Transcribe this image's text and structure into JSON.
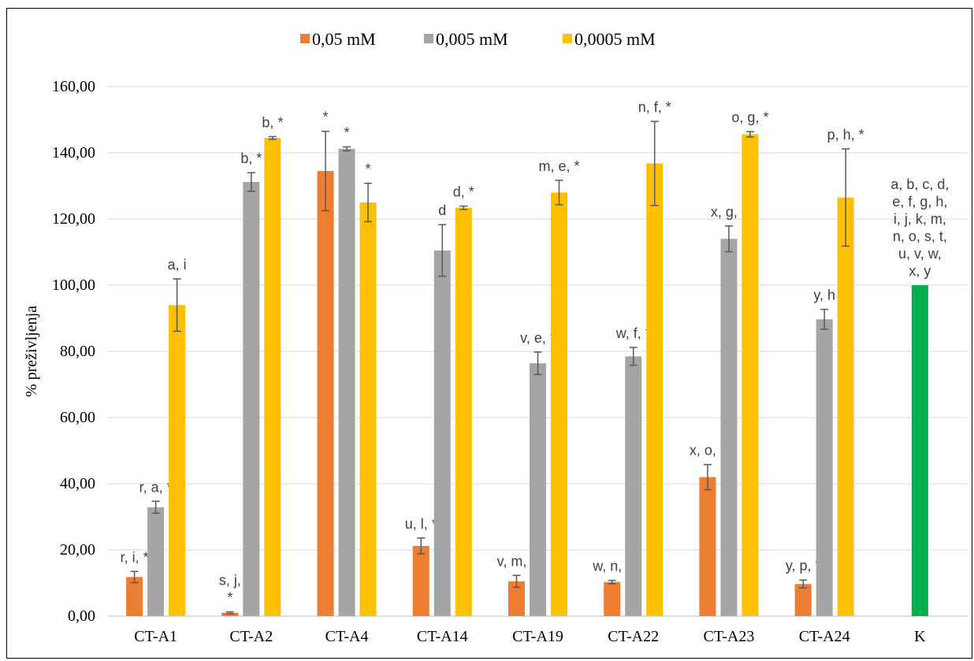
{
  "chart_data": {
    "type": "bar",
    "ylabel": "% preživljenja",
    "xlabel": "",
    "title": "",
    "ylim": [
      0,
      160
    ],
    "yticks": [
      "0,00",
      "20,00",
      "40,00",
      "60,00",
      "80,00",
      "100,00",
      "120,00",
      "140,00",
      "160,00"
    ],
    "grid": true,
    "legend_position": "top",
    "categories": [
      "CT-A1",
      "CT-A2",
      "CT-A4",
      "CT-A14",
      "CT-A19",
      "CT-A22",
      "CT-A23",
      "CT-A24",
      "K"
    ],
    "series": [
      {
        "name": "0,05 mM",
        "color": "#ED7D31",
        "values": [
          11.8,
          1.0,
          134.5,
          21.2,
          10.5,
          10.3,
          42.0,
          9.7,
          null
        ],
        "errors": [
          1.7,
          0.3,
          12.0,
          2.4,
          1.8,
          0.5,
          3.8,
          1.2,
          null
        ],
        "labels": [
          "r, i, *",
          "s, j,\n*",
          "*",
          "u, l, *",
          "v, m, *",
          "w, n, *",
          "x, o, *",
          "y, p, *",
          ""
        ]
      },
      {
        "name": "0,005 mM",
        "color": "#A5A5A5",
        "values": [
          32.9,
          131.2,
          141.2,
          110.5,
          76.4,
          78.5,
          114.0,
          89.7,
          null
        ],
        "errors": [
          1.8,
          2.8,
          0.6,
          7.8,
          3.4,
          2.7,
          3.9,
          3.0,
          null
        ],
        "labels": [
          "r, a, *",
          "b, *",
          "*",
          "d",
          "v, e, *",
          "w, f, *",
          "x, g, *",
          "y, h",
          ""
        ]
      },
      {
        "name": "0,0005 mM",
        "color": "#FFC000",
        "values": [
          94.0,
          144.5,
          125.0,
          123.4,
          128.0,
          136.8,
          145.6,
          126.5,
          null
        ],
        "errors": [
          7.9,
          0.4,
          5.8,
          0.5,
          3.7,
          12.7,
          0.8,
          14.7,
          null
        ],
        "labels": [
          "a, i",
          "b, *",
          "*",
          "d, *",
          "m, e, *",
          "n, f, *",
          "o, g, *",
          "p, h, *",
          ""
        ]
      },
      {
        "name": "",
        "color": "#00B050",
        "values": [
          null,
          null,
          null,
          null,
          null,
          null,
          null,
          null,
          100.0
        ],
        "errors": [
          null,
          null,
          null,
          null,
          null,
          null,
          null,
          null,
          null
        ],
        "labels": [
          "",
          "",
          "",
          "",
          "",
          "",
          "",
          "",
          "a, b, c, d,\ne, f, g, h,\ni, j, k, m,\nn, o, s, t,\nu, v, w,\nx, y"
        ]
      }
    ]
  }
}
